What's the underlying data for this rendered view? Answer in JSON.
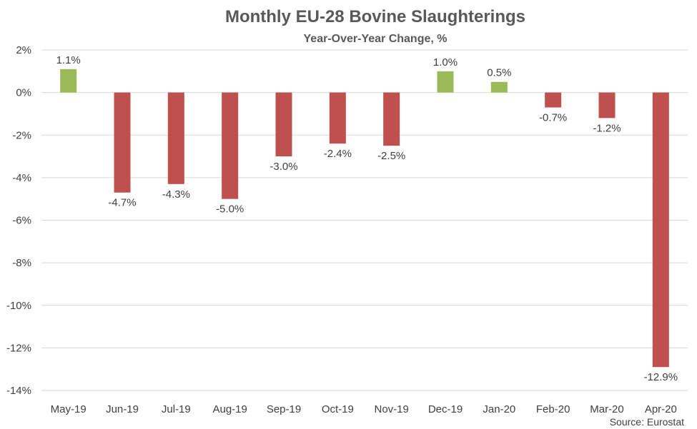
{
  "chart_data": {
    "type": "bar",
    "title": "Monthly EU-28 Bovine Slaughterings",
    "subtitle": "Year-Over-Year Change, %",
    "categories": [
      "May-19",
      "Jun-19",
      "Jul-19",
      "Aug-19",
      "Sep-19",
      "Oct-19",
      "Nov-19",
      "Dec-19",
      "Jan-20",
      "Feb-20",
      "Mar-20",
      "Apr-20"
    ],
    "values": [
      1.1,
      -4.7,
      -4.3,
      -5.0,
      -3.0,
      -2.4,
      -2.5,
      1.0,
      0.5,
      -0.7,
      -1.2,
      -12.9
    ],
    "data_labels": [
      "1.1%",
      "-4.7%",
      "-4.3%",
      "-5.0%",
      "-3.0%",
      "-2.4%",
      "-2.5%",
      "1.0%",
      "0.5%",
      "-0.7%",
      "-1.2%",
      "-12.9%"
    ],
    "ylim": [
      -14,
      2
    ],
    "y_ticks": [
      2,
      0,
      -2,
      -4,
      -6,
      -8,
      -10,
      -12,
      -14
    ],
    "y_tick_labels": [
      "2%",
      "0%",
      "-2%",
      "-4%",
      "-6%",
      "-8%",
      "-10%",
      "-12%",
      "-14%"
    ],
    "xlabel": "",
    "ylabel": "",
    "grid": true,
    "legend": "none",
    "colors": {
      "positive": "#9BBB59",
      "negative": "#C0504D",
      "grid": "#D9D9D9"
    },
    "source": "Source: Eurostat"
  }
}
